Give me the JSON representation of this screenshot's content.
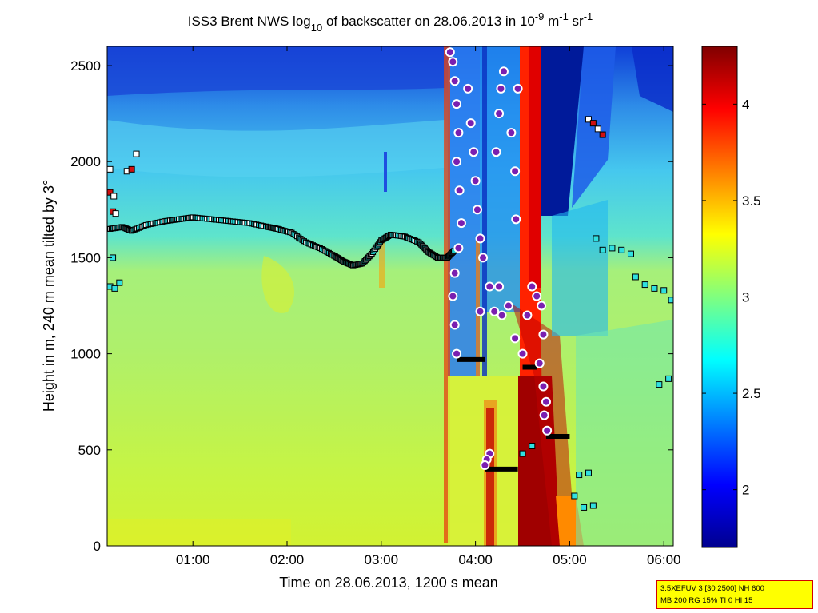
{
  "chart_data": {
    "type": "heatmap",
    "title": {
      "prefix": "ISS3 Brent NWS log",
      "sub": "10",
      "mid": " of backscatter on 28.06.2013 in 10",
      "exp1": "-9",
      "unit1": " m",
      "exp2": "-1",
      "unit2": " sr",
      "exp3": "-1"
    },
    "xlabel": "Time on 28.06.2013, 1200 s mean",
    "ylabel": "Height in m, 240 m mean tilted by 3°",
    "x_range_hours": [
      0.09,
      6.1
    ],
    "y_range_m": [
      0,
      2600
    ],
    "x_ticks": [
      {
        "label": "01:00",
        "value": 1
      },
      {
        "label": "02:00",
        "value": 2
      },
      {
        "label": "03:00",
        "value": 3
      },
      {
        "label": "04:00",
        "value": 4
      },
      {
        "label": "05:00",
        "value": 5
      },
      {
        "label": "06:00",
        "value": 6
      }
    ],
    "y_ticks": [
      {
        "label": "0",
        "value": 0
      },
      {
        "label": "500",
        "value": 500
      },
      {
        "label": "1000",
        "value": 1000
      },
      {
        "label": "1500",
        "value": 1500
      },
      {
        "label": "2000",
        "value": 2000
      },
      {
        "label": "2500",
        "value": 2500
      }
    ],
    "colorbar": {
      "colormap": "jet",
      "range": [
        1.7,
        4.3
      ],
      "ticks": [
        {
          "label": "2",
          "value": 2
        },
        {
          "label": "2.5",
          "value": 2.5
        },
        {
          "label": "3",
          "value": 3
        },
        {
          "label": "3.5",
          "value": 3.5
        },
        {
          "label": "4",
          "value": 4
        }
      ]
    },
    "mixing_layer_height": [
      [
        0.12,
        1650
      ],
      [
        0.25,
        1660
      ],
      [
        0.35,
        1640
      ],
      [
        0.5,
        1670
      ],
      [
        0.7,
        1690
      ],
      [
        0.85,
        1700
      ],
      [
        1.0,
        1710
      ],
      [
        1.2,
        1700
      ],
      [
        1.4,
        1690
      ],
      [
        1.6,
        1680
      ],
      [
        1.8,
        1660
      ],
      [
        1.9,
        1650
      ],
      [
        2.05,
        1630
      ],
      [
        2.2,
        1580
      ],
      [
        2.35,
        1550
      ],
      [
        2.5,
        1510
      ],
      [
        2.6,
        1480
      ],
      [
        2.7,
        1460
      ],
      [
        2.8,
        1470
      ],
      [
        2.9,
        1520
      ],
      [
        3.0,
        1590
      ],
      [
        3.1,
        1620
      ],
      [
        3.25,
        1610
      ],
      [
        3.4,
        1580
      ],
      [
        3.5,
        1530
      ],
      [
        3.6,
        1500
      ],
      [
        3.7,
        1500
      ],
      [
        3.78,
        1540
      ]
    ],
    "cloud_base_points": [
      [
        3.73,
        2570
      ],
      [
        3.76,
        2520
      ],
      [
        3.78,
        2420
      ],
      [
        3.8,
        2300
      ],
      [
        3.82,
        2150
      ],
      [
        3.8,
        2000
      ],
      [
        3.83,
        1850
      ],
      [
        3.85,
        1680
      ],
      [
        3.82,
        1550
      ],
      [
        3.78,
        1420
      ],
      [
        3.76,
        1300
      ],
      [
        3.78,
        1150
      ],
      [
        3.8,
        1000
      ],
      [
        3.92,
        2380
      ],
      [
        3.95,
        2200
      ],
      [
        3.98,
        2050
      ],
      [
        4.0,
        1900
      ],
      [
        4.02,
        1750
      ],
      [
        4.05,
        1600
      ],
      [
        4.08,
        1500
      ],
      [
        4.05,
        1220
      ],
      [
        4.15,
        1350
      ],
      [
        4.2,
        1220
      ],
      [
        4.28,
        1200
      ],
      [
        4.25,
        1350
      ],
      [
        4.22,
        2050
      ],
      [
        4.25,
        2250
      ],
      [
        4.27,
        2380
      ],
      [
        4.3,
        2470
      ],
      [
        4.38,
        2150
      ],
      [
        4.42,
        1950
      ],
      [
        4.45,
        2380
      ],
      [
        4.43,
        1700
      ],
      [
        4.35,
        1250
      ],
      [
        4.42,
        1080
      ],
      [
        4.5,
        1000
      ],
      [
        4.55,
        1200
      ],
      [
        4.6,
        1350
      ],
      [
        4.65,
        1300
      ],
      [
        4.7,
        1250
      ],
      [
        4.72,
        1100
      ],
      [
        4.68,
        950
      ],
      [
        4.72,
        830
      ],
      [
        4.75,
        750
      ],
      [
        4.73,
        680
      ],
      [
        4.76,
        600
      ],
      [
        4.15,
        480
      ],
      [
        4.12,
        450
      ],
      [
        4.1,
        420
      ]
    ],
    "cloud_base_lines": [
      {
        "from": [
          3.8,
          970
        ],
        "to": [
          4.1,
          970
        ]
      },
      {
        "from": [
          4.1,
          400
        ],
        "to": [
          4.45,
          400
        ]
      },
      {
        "from": [
          4.5,
          930
        ],
        "to": [
          4.65,
          930
        ]
      },
      {
        "from": [
          4.75,
          570
        ],
        "to": [
          5.0,
          570
        ]
      }
    ],
    "other_markers": [
      [
        0.12,
        1960
      ],
      [
        0.12,
        1840
      ],
      [
        0.16,
        1820
      ],
      [
        0.15,
        1740
      ],
      [
        0.18,
        1730
      ],
      [
        0.12,
        1350
      ],
      [
        0.17,
        1340
      ],
      [
        0.22,
        1370
      ],
      [
        0.3,
        1950
      ],
      [
        0.35,
        1960
      ],
      [
        0.4,
        2040
      ],
      [
        0.15,
        1500
      ],
      [
        5.2,
        2220
      ],
      [
        5.25,
        2200
      ],
      [
        5.3,
        2170
      ],
      [
        5.35,
        2140
      ],
      [
        5.28,
        1600
      ],
      [
        5.35,
        1540
      ],
      [
        5.45,
        1550
      ],
      [
        5.55,
        1540
      ],
      [
        5.65,
        1520
      ],
      [
        5.7,
        1400
      ],
      [
        5.8,
        1360
      ],
      [
        5.9,
        1340
      ],
      [
        6.0,
        1330
      ],
      [
        6.08,
        1280
      ],
      [
        5.95,
        840
      ],
      [
        6.05,
        870
      ],
      [
        5.1,
        370
      ],
      [
        5.2,
        380
      ],
      [
        5.05,
        260
      ],
      [
        5.15,
        200
      ],
      [
        5.25,
        210
      ],
      [
        4.6,
        520
      ],
      [
        4.5,
        480
      ]
    ]
  },
  "annotation": {
    "line1": "3.5XEFUV 3 [30 2500] NH 600",
    "line2": "MB 200 RG 15% TI 0 HI 15"
  }
}
